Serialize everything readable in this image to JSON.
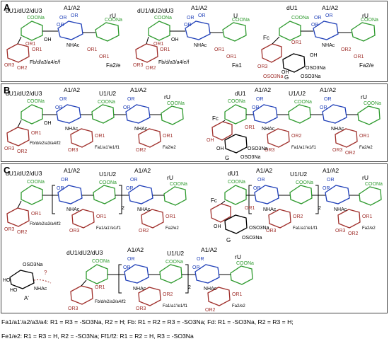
{
  "colors": {
    "green": "#2e9a2e",
    "blue": "#1f3fb8",
    "red": "#a0302c",
    "black": "#000000",
    "frame": "#444444"
  },
  "panels": [
    {
      "letter": "A",
      "chains": [
        {
          "labels": [
            {
              "text": "dU1/dU2/dU3",
              "color": "black"
            },
            {
              "text": "A1/A2",
              "color": "black"
            },
            {
              "text": "rU",
              "color": "black"
            }
          ],
          "atoms": [
            "COONa",
            "OH",
            "OR",
            "OR",
            "OR",
            "NHAc",
            "COONa",
            "OR1",
            "OR3",
            "OR2",
            "OR1",
            "OR1",
            "OR1"
          ],
          "fuc": "Fb/d/a3/a4/e/f",
          "bottom": "Fa2/e"
        },
        {
          "labels": [
            {
              "text": "dU1/dU2/dU3",
              "color": "black"
            },
            {
              "text": "A1/A2",
              "color": "black"
            },
            {
              "text": "U",
              "color": "black"
            }
          ],
          "atoms": [
            "COONa",
            "OH",
            "OR",
            "OR",
            "OR",
            "NHAc",
            "COONa",
            "OR1",
            "OR3",
            "OR2",
            "OR1",
            "OR1",
            "OR1"
          ],
          "fuc": "Fb/d/a3/a4/e/f",
          "bottom": "Fa1"
        },
        {
          "labels": [
            {
              "text": "dU1",
              "color": "black"
            },
            {
              "text": "A1/A2",
              "color": "black"
            },
            {
              "text": "rU",
              "color": "black"
            }
          ],
          "atoms": [
            "COONa",
            "OR",
            "OR",
            "OR",
            "NHAc",
            "COONa",
            "OR1",
            "OR3",
            "OR2",
            "OR1",
            "OH",
            "OSO3Na",
            "OSO3Na",
            "OH",
            "OSO3Na"
          ],
          "fuc": "Fc",
          "side": "G",
          "bottom": "Fa2/e"
        }
      ]
    },
    {
      "letter": "B",
      "chains": [
        {
          "labels": [
            {
              "text": "dU1/dU2/dU3",
              "color": "black"
            },
            {
              "text": "A1/A2",
              "color": "black"
            },
            {
              "text": "U1/U2",
              "color": "black"
            },
            {
              "text": "A1/A2",
              "color": "black"
            },
            {
              "text": "rU",
              "color": "black"
            }
          ],
          "atoms": [
            "COONa",
            "OH",
            "OR",
            "OR",
            "COONa",
            "OR",
            "OR",
            "COONa",
            "NHAc",
            "NHAc",
            "OR1",
            "OR3",
            "OR2",
            "OR1",
            "OR3",
            "OR2",
            "OR1"
          ],
          "fuc": "Fb/d/e2/a3/a4/f2",
          "mid": "Fa1/a1'/e1/f1",
          "bottom": "Fa2/e2"
        },
        {
          "labels": [
            {
              "text": "dU1",
              "color": "black"
            },
            {
              "text": "A1/A2",
              "color": "black"
            },
            {
              "text": "U1/U2",
              "color": "black"
            },
            {
              "text": "A1/A2",
              "color": "black"
            },
            {
              "text": "rU",
              "color": "black"
            }
          ],
          "atoms": [
            "COONa",
            "OR",
            "OR",
            "COONa",
            "OR",
            "OR",
            "COONa",
            "NHAc",
            "NHAc",
            "OR1",
            "OR3",
            "OR2",
            "OR1",
            "OR3",
            "OR2",
            "OH",
            "OSO3Na",
            "OSO3Na",
            "OH"
          ],
          "fuc": "Fc",
          "side": "G",
          "mid": "Fa1/a1'/e1/f1",
          "bottom": "Fa2/e2"
        }
      ]
    },
    {
      "letter": "C",
      "chains": [
        {
          "labels": [
            {
              "text": "dU1/dU2/dU3",
              "color": "black"
            },
            {
              "text": "A1/A2",
              "color": "black"
            },
            {
              "text": "U1/U2",
              "color": "black"
            },
            {
              "text": "A1/A2",
              "color": "black"
            },
            {
              "text": "rU",
              "color": "black"
            }
          ],
          "atoms": [
            "COONa",
            "OR",
            "OR",
            "COONa",
            "OR",
            "OR",
            "COONa",
            "NHAc",
            "NHAc",
            "OR1",
            "OR3",
            "OR2",
            "OR1",
            "OR3",
            "OR2",
            "OR1"
          ],
          "repeat": "2",
          "fuc": "Fb/d/e2/a3/a4/f2",
          "mid": "Fa1/a1'/e1/f1",
          "bottom": "Fa2/e2"
        },
        {
          "labels": [
            {
              "text": "dU1",
              "color": "black"
            },
            {
              "text": "A1/A2",
              "color": "black"
            },
            {
              "text": "U1/U2",
              "color": "black"
            },
            {
              "text": "A1/A2",
              "color": "black"
            },
            {
              "text": "rU",
              "color": "black"
            }
          ],
          "atoms": [
            "COONa",
            "OR",
            "OR",
            "COONa",
            "OR",
            "OR",
            "COONa",
            "NHAc",
            "NHAc",
            "OR1",
            "OR3",
            "OR2",
            "OR1",
            "OR3",
            "OR2",
            "OSO3Na",
            "OSO3Na",
            "OH"
          ],
          "repeat": "2",
          "fuc": "Fc",
          "side": "G",
          "mid": "Fa1/a1'/e1/f1",
          "bottom": "Fa2/e2"
        },
        {
          "labels": [
            {
              "text": "dU1/dU2/dU3",
              "color": "black"
            },
            {
              "text": "A1/A2",
              "color": "black"
            },
            {
              "text": "U1/U2",
              "color": "black"
            },
            {
              "text": "A1/A2",
              "color": "black"
            },
            {
              "text": "rU",
              "color": "black"
            }
          ],
          "atoms": [
            "COONa",
            "OR",
            "OR",
            "COONa",
            "OR",
            "OR",
            "COONa",
            "NHAc",
            "NHAc",
            "OR1",
            "OR3",
            "OR2",
            "OR1",
            "OR3",
            "OR2",
            "OSO3Na",
            "HO",
            "HO",
            "NHAc"
          ],
          "repeat": "2",
          "prefix": "A'",
          "question": "?",
          "fuc": "Fb/d/e2/a3/a4/f2",
          "mid": "Fa1/a1'/e1/f1",
          "bottom": "Fa2/e2"
        }
      ]
    }
  ],
  "footnotes": [
    "Fa1/a1'/a2/a3/a4: R1 = R3 = -SO3Na, R2 = H;  Fb: R1 = R2 = R3 = -SO3Na;  Fd: R1 = -SO3Na,  R2 = R3 = H;",
    "Fe1/e2: R1 = R3 = H, R2 = -SO3Na;  Ff1/f2: R1 = R2 = H, R3 = -SO3Na"
  ]
}
